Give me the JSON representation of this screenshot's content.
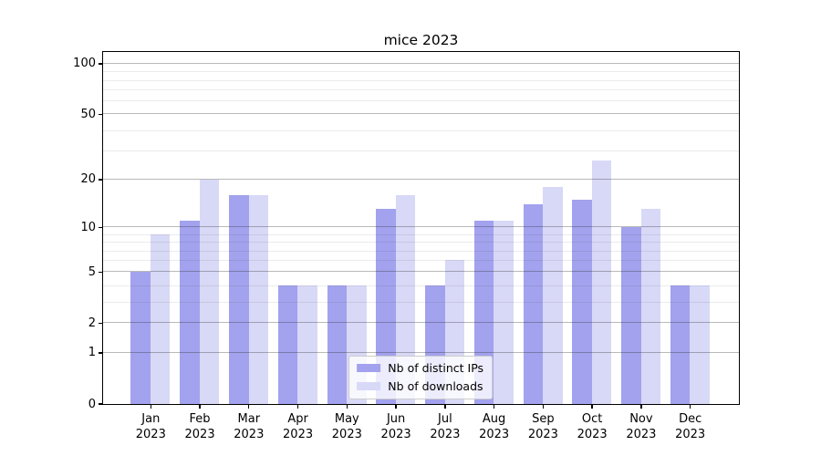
{
  "figure": {
    "title": "mice 2023"
  },
  "chart_data": {
    "type": "bar",
    "title": "mice 2023",
    "categories": [
      "Jan\n2023",
      "Feb\n2023",
      "Mar\n2023",
      "Apr\n2023",
      "May\n2023",
      "Jun\n2023",
      "Jul\n2023",
      "Aug\n2023",
      "Sep\n2023",
      "Oct\n2023",
      "Nov\n2023",
      "Dec\n2023"
    ],
    "series": [
      {
        "name": "Nb of distinct IPs",
        "color": "#a2a2ee",
        "values": [
          5,
          11,
          16,
          4,
          4,
          13,
          4,
          11,
          14,
          15,
          10,
          4
        ]
      },
      {
        "name": "Nb of downloads",
        "color": "#d8d8f7",
        "values": [
          9,
          20,
          16,
          4,
          4,
          16,
          6,
          11,
          18,
          26,
          13,
          4
        ]
      }
    ],
    "yscale": "log1p",
    "ylim": [
      0,
      117
    ],
    "y_major_ticks": [
      100,
      50,
      20,
      10,
      5,
      2,
      1,
      0
    ],
    "y_minor_gridlines": [
      3,
      4,
      6,
      7,
      8,
      9,
      30,
      40,
      60,
      70,
      80,
      90
    ],
    "grid": true,
    "legend_position": "lower center",
    "colors": {
      "background": "#ffffff",
      "axis": "#000000",
      "major_grid": "rgba(38,38,38,0.32)",
      "minor_grid": "rgba(60,60,60,0.10)"
    }
  }
}
